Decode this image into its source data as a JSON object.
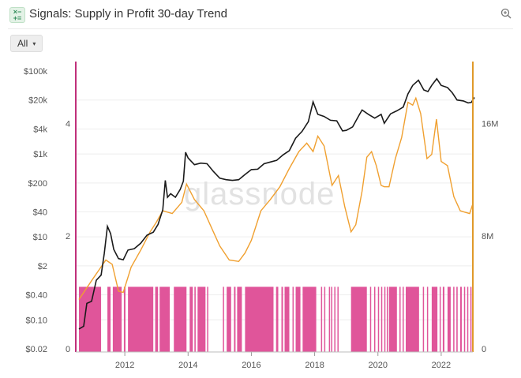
{
  "header": {
    "title": "Signals: Supply in Profit 30-day Trend",
    "app_icon": "signals-icon",
    "zoom_icon": "zoom-icon"
  },
  "filter": {
    "selected": "All",
    "caret": "▾"
  },
  "watermark": "glassnode",
  "colors": {
    "price": "#1a1a1a",
    "supply": "#f0a030",
    "signal": "#e0559a",
    "left_axis": "#c0307a",
    "right_axis": "#e09a2a"
  },
  "chart_data": {
    "type": "line",
    "price_axis": {
      "scale": "log",
      "ticks": [
        "$100k",
        "$20k",
        "$4k",
        "$1k",
        "$200",
        "$40",
        "$10",
        "$2",
        "$0.40",
        "$0.10",
        "$0.02"
      ]
    },
    "signal_axis": {
      "ticks": [
        "4",
        "2",
        "0"
      ]
    },
    "supply_axis": {
      "ticks": [
        "16M",
        "8M",
        "0"
      ]
    },
    "x_ticks": [
      "2012",
      "2014",
      "2016",
      "2018",
      "2020",
      "2022"
    ],
    "series": [
      {
        "key": "price",
        "points": [
          [
            2010.55,
            0.06
          ],
          [
            2010.7,
            0.07
          ],
          [
            2010.8,
            0.25
          ],
          [
            2010.95,
            0.28
          ],
          [
            2011.1,
            0.9
          ],
          [
            2011.25,
            1.2
          ],
          [
            2011.35,
            4
          ],
          [
            2011.45,
            18
          ],
          [
            2011.55,
            12
          ],
          [
            2011.65,
            5
          ],
          [
            2011.8,
            3
          ],
          [
            2011.95,
            2.8
          ],
          [
            2012.1,
            4.8
          ],
          [
            2012.3,
            5.2
          ],
          [
            2012.5,
            7
          ],
          [
            2012.7,
            11
          ],
          [
            2012.9,
            13
          ],
          [
            2013.05,
            20
          ],
          [
            2013.2,
            45
          ],
          [
            2013.28,
            230
          ],
          [
            2013.35,
            90
          ],
          [
            2013.45,
            110
          ],
          [
            2013.6,
            90
          ],
          [
            2013.75,
            140
          ],
          [
            2013.85,
            220
          ],
          [
            2013.92,
            1100
          ],
          [
            2014.0,
            800
          ],
          [
            2014.2,
            550
          ],
          [
            2014.4,
            600
          ],
          [
            2014.6,
            580
          ],
          [
            2014.8,
            380
          ],
          [
            2015.0,
            260
          ],
          [
            2015.2,
            240
          ],
          [
            2015.4,
            230
          ],
          [
            2015.6,
            240
          ],
          [
            2015.8,
            320
          ],
          [
            2016.0,
            420
          ],
          [
            2016.2,
            430
          ],
          [
            2016.4,
            580
          ],
          [
            2016.6,
            640
          ],
          [
            2016.8,
            700
          ],
          [
            2017.0,
            950
          ],
          [
            2017.2,
            1200
          ],
          [
            2017.4,
            2400
          ],
          [
            2017.6,
            3500
          ],
          [
            2017.8,
            6000
          ],
          [
            2017.95,
            18000
          ],
          [
            2018.1,
            9000
          ],
          [
            2018.3,
            8000
          ],
          [
            2018.5,
            6500
          ],
          [
            2018.7,
            6300
          ],
          [
            2018.88,
            3600
          ],
          [
            2019.0,
            3700
          ],
          [
            2019.2,
            4500
          ],
          [
            2019.4,
            8500
          ],
          [
            2019.5,
            11500
          ],
          [
            2019.7,
            9000
          ],
          [
            2019.9,
            7300
          ],
          [
            2020.1,
            9000
          ],
          [
            2020.2,
            5500
          ],
          [
            2020.4,
            9300
          ],
          [
            2020.6,
            11000
          ],
          [
            2020.8,
            13500
          ],
          [
            2020.95,
            28000
          ],
          [
            2021.1,
            45000
          ],
          [
            2021.28,
            60000
          ],
          [
            2021.45,
            35000
          ],
          [
            2021.58,
            32000
          ],
          [
            2021.7,
            45000
          ],
          [
            2021.86,
            65000
          ],
          [
            2022.0,
            45000
          ],
          [
            2022.2,
            40000
          ],
          [
            2022.35,
            30000
          ],
          [
            2022.5,
            20000
          ],
          [
            2022.7,
            19000
          ],
          [
            2022.85,
            17000
          ],
          [
            2022.95,
            17500
          ],
          [
            2023.05,
            23000
          ]
        ]
      },
      {
        "key": "supply",
        "points": [
          [
            2010.55,
            3.5
          ],
          [
            2011.0,
            5.0
          ],
          [
            2011.4,
            6.3
          ],
          [
            2011.6,
            6.0
          ],
          [
            2011.8,
            4.1
          ],
          [
            2011.95,
            4.0
          ],
          [
            2012.2,
            5.8
          ],
          [
            2012.5,
            7.0
          ],
          [
            2012.8,
            8.3
          ],
          [
            2013.0,
            9.0
          ],
          [
            2013.2,
            9.8
          ],
          [
            2013.5,
            9.6
          ],
          [
            2013.8,
            10.4
          ],
          [
            2013.95,
            11.7
          ],
          [
            2014.2,
            10.6
          ],
          [
            2014.5,
            9.8
          ],
          [
            2014.8,
            8.3
          ],
          [
            2015.0,
            7.3
          ],
          [
            2015.3,
            6.3
          ],
          [
            2015.6,
            6.2
          ],
          [
            2015.8,
            6.8
          ],
          [
            2016.0,
            7.7
          ],
          [
            2016.3,
            9.8
          ],
          [
            2016.6,
            10.6
          ],
          [
            2016.9,
            11.5
          ],
          [
            2017.2,
            12.8
          ],
          [
            2017.5,
            14.0
          ],
          [
            2017.75,
            14.6
          ],
          [
            2017.95,
            14.0
          ],
          [
            2018.1,
            15.1
          ],
          [
            2018.3,
            14.4
          ],
          [
            2018.55,
            11.6
          ],
          [
            2018.75,
            12.3
          ],
          [
            2018.95,
            10.1
          ],
          [
            2019.15,
            8.3
          ],
          [
            2019.3,
            8.8
          ],
          [
            2019.5,
            11.2
          ],
          [
            2019.65,
            13.6
          ],
          [
            2019.8,
            14.0
          ],
          [
            2019.95,
            13.0
          ],
          [
            2020.1,
            11.6
          ],
          [
            2020.2,
            11.5
          ],
          [
            2020.35,
            11.5
          ],
          [
            2020.55,
            13.5
          ],
          [
            2020.75,
            15.0
          ],
          [
            2020.95,
            17.5
          ],
          [
            2021.1,
            17.3
          ],
          [
            2021.2,
            17.8
          ],
          [
            2021.35,
            16.7
          ],
          [
            2021.55,
            13.5
          ],
          [
            2021.7,
            13.8
          ],
          [
            2021.85,
            16.3
          ],
          [
            2022.0,
            13.3
          ],
          [
            2022.2,
            13.0
          ],
          [
            2022.4,
            10.8
          ],
          [
            2022.6,
            9.8
          ],
          [
            2022.75,
            9.7
          ],
          [
            2022.9,
            9.6
          ],
          [
            2023.0,
            10.3
          ]
        ]
      }
    ],
    "signal_bars": [
      [
        2010.55,
        2011.25
      ],
      [
        2011.45,
        2011.55
      ],
      [
        2011.62,
        2011.9
      ],
      [
        2011.97,
        2012.02
      ],
      [
        2012.1,
        2012.9
      ],
      [
        2012.96,
        2013.05
      ],
      [
        2013.1,
        2013.42
      ],
      [
        2013.55,
        2013.95
      ],
      [
        2014.05,
        2014.15
      ],
      [
        2014.2,
        2014.24
      ],
      [
        2014.3,
        2014.55
      ],
      [
        2014.6,
        2014.62
      ],
      [
        2015.1,
        2015.13
      ],
      [
        2015.22,
        2015.36
      ],
      [
        2015.45,
        2015.5
      ],
      [
        2015.55,
        2015.7
      ],
      [
        2015.8,
        2016.7
      ],
      [
        2016.78,
        2016.85
      ],
      [
        2016.95,
        2017.0
      ],
      [
        2017.05,
        2017.2
      ],
      [
        2017.3,
        2017.32
      ],
      [
        2017.4,
        2017.55
      ],
      [
        2017.62,
        2018.05
      ],
      [
        2018.2,
        2018.23
      ],
      [
        2018.3,
        2018.33
      ],
      [
        2018.45,
        2018.48
      ],
      [
        2018.52,
        2018.55
      ],
      [
        2018.62,
        2018.65
      ],
      [
        2018.72,
        2018.75
      ],
      [
        2019.15,
        2019.65
      ],
      [
        2019.75,
        2019.78
      ],
      [
        2019.88,
        2019.9
      ],
      [
        2020.0,
        2020.02
      ],
      [
        2020.1,
        2020.12
      ],
      [
        2020.2,
        2020.23
      ],
      [
        2020.28,
        2020.3
      ],
      [
        2020.35,
        2020.6
      ],
      [
        2020.68,
        2020.7
      ],
      [
        2020.78,
        2020.8
      ],
      [
        2020.88,
        2021.3
      ],
      [
        2021.42,
        2021.45
      ],
      [
        2021.55,
        2021.58
      ],
      [
        2021.7,
        2021.88
      ],
      [
        2021.95,
        2021.98
      ],
      [
        2022.05,
        2022.1
      ],
      [
        2022.2,
        2022.3
      ],
      [
        2022.38,
        2022.4
      ],
      [
        2022.48,
        2022.52
      ],
      [
        2022.6,
        2022.65
      ],
      [
        2022.72,
        2022.75
      ],
      [
        2022.82,
        2022.84
      ],
      [
        2022.92,
        2022.96
      ]
    ]
  }
}
